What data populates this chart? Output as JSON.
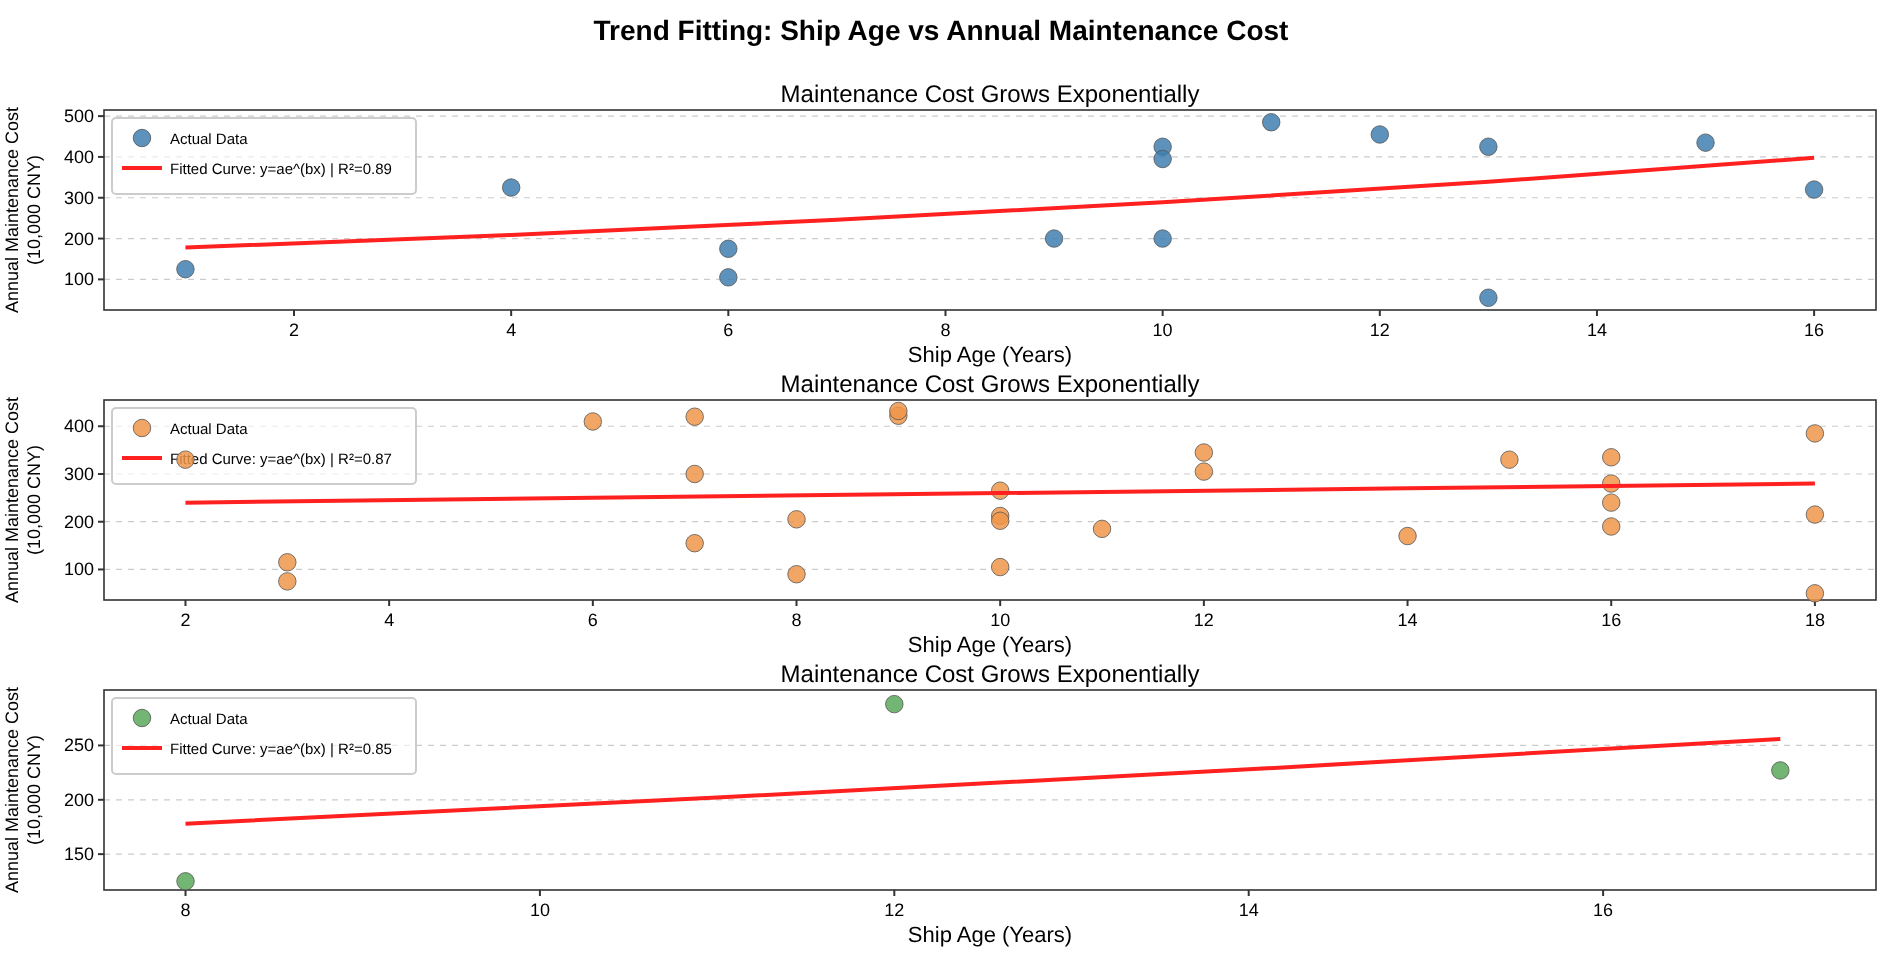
{
  "chart_data": [
    {
      "type": "scatter",
      "title": "Trend Fitting: Ship Age vs Annual Maintenance Cost",
      "subtitle": "Maintenance Cost Grows Exponentially",
      "xlabel": "Ship Age (Years)",
      "ylabel": "Annual Maintenance Cost (10,000 CNY)",
      "xlim": [
        0.25,
        16.57
      ],
      "ylim": [
        25,
        515
      ],
      "xticks": [
        2,
        4,
        6,
        8,
        10,
        12,
        14,
        16
      ],
      "yticks": [
        100,
        200,
        300,
        400,
        500
      ],
      "grid": "y",
      "legend": "top left",
      "series": [
        {
          "name": "Actual Data",
          "marker": "circle",
          "color": "#3f7fb0",
          "x": [
            1,
            4,
            6,
            6,
            9,
            10,
            10,
            10,
            11,
            12,
            13,
            13,
            15,
            16
          ],
          "values": [
            125,
            325,
            175,
            105,
            200,
            425,
            395,
            200,
            485,
            455,
            425,
            55,
            435,
            320
          ]
        },
        {
          "name": "Fitted Curve: y=ae^(bx) | R²=0.89",
          "type": "line",
          "marker": "none",
          "color": "#ff2020",
          "x": [
            1,
            4,
            7,
            10,
            13,
            16
          ],
          "values": [
            178,
            209,
            246,
            289,
            339,
            398
          ]
        }
      ]
    },
    {
      "type": "scatter",
      "title": "Maintenance Cost Grows Exponentially",
      "xlabel": "Ship Age (Years)",
      "ylabel": "Annual Maintenance Cost (10,000 CNY)",
      "xlim": [
        1.2,
        18.6
      ],
      "ylim": [
        36,
        455
      ],
      "xticks": [
        2,
        4,
        6,
        8,
        10,
        12,
        14,
        16,
        18
      ],
      "yticks": [
        100,
        200,
        300,
        400
      ],
      "grid": "y",
      "legend": "top left",
      "series": [
        {
          "name": "Actual Data",
          "marker": "circle",
          "color": "#f0964a",
          "x": [
            2,
            3,
            3,
            6,
            7,
            7,
            7,
            8,
            8,
            9,
            9,
            10,
            10,
            10,
            10,
            11,
            12,
            12,
            14,
            15,
            16,
            16,
            16,
            16,
            18,
            18,
            18
          ],
          "values": [
            330,
            115,
            75,
            410,
            420,
            300,
            155,
            205,
            90,
            422,
            432,
            265,
            212,
            202,
            105,
            185,
            345,
            305,
            170,
            330,
            335,
            280,
            240,
            190,
            385,
            215,
            50
          ]
        },
        {
          "name": "Fitted Curve: y=ae^(bx) | R²=0.87",
          "type": "line",
          "marker": "none",
          "color": "#ff2020",
          "x": [
            2,
            6,
            10,
            14,
            18
          ],
          "values": [
            240,
            250,
            260,
            270,
            280
          ]
        }
      ]
    },
    {
      "type": "scatter",
      "title": "Maintenance Cost Grows Exponentially",
      "xlabel": "Ship Age (Years)",
      "ylabel": "Annual Maintenance Cost (10,000 CNY)",
      "xlim": [
        7.54,
        17.54
      ],
      "ylim": [
        117,
        301
      ],
      "xticks": [
        8,
        10,
        12,
        14,
        16
      ],
      "yticks": [
        150,
        200,
        250
      ],
      "grid": "y",
      "legend": "top left",
      "series": [
        {
          "name": "Actual Data",
          "marker": "circle",
          "color": "#5aa85a",
          "x": [
            8,
            12,
            17
          ],
          "values": [
            125,
            288,
            227
          ]
        },
        {
          "name": "Fitted Curve: y=ae^(bx) | R²=0.85",
          "type": "line",
          "marker": "none",
          "color": "#ff2020",
          "x": [
            8,
            11,
            14,
            17
          ],
          "values": [
            178,
            202,
            228,
            256
          ]
        }
      ]
    }
  ]
}
